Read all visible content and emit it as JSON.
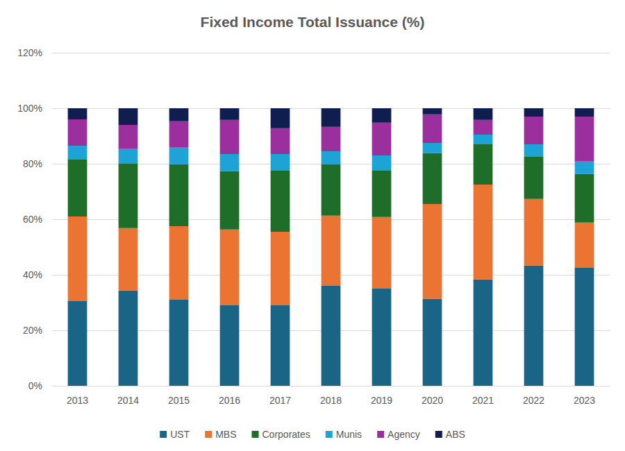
{
  "chart_data": {
    "type": "bar",
    "title": "Fixed Income Total Issuance (%)",
    "categories": [
      "2013",
      "2014",
      "2015",
      "2016",
      "2017",
      "2018",
      "2019",
      "2020",
      "2021",
      "2022",
      "2023"
    ],
    "series": [
      {
        "name": "UST",
        "color": "#1a6485",
        "values": [
          30.5,
          34.3,
          31.0,
          29.0,
          29.0,
          36.0,
          35.0,
          31.3,
          38.3,
          43.3,
          42.5
        ]
      },
      {
        "name": "MBS",
        "color": "#ec7432",
        "values": [
          30.5,
          22.5,
          26.5,
          27.3,
          26.5,
          25.3,
          25.8,
          34.2,
          34.2,
          24.0,
          16.3
        ]
      },
      {
        "name": "Corporates",
        "color": "#1e6e2a",
        "values": [
          20.5,
          23.2,
          22.3,
          21.0,
          22.0,
          18.5,
          16.7,
          18.3,
          14.5,
          15.2,
          17.5
        ]
      },
      {
        "name": "Munis",
        "color": "#1da3d6",
        "values": [
          5.0,
          5.3,
          6.0,
          6.2,
          6.0,
          4.7,
          5.5,
          3.7,
          3.5,
          4.5,
          4.5
        ]
      },
      {
        "name": "Agency",
        "color": "#9b2f9e",
        "values": [
          9.5,
          8.7,
          9.5,
          12.3,
          9.3,
          8.8,
          11.8,
          10.3,
          5.3,
          10.0,
          16.2
        ]
      },
      {
        "name": "ABS",
        "color": "#0f1d4f",
        "values": [
          4.0,
          6.0,
          4.7,
          4.2,
          7.2,
          6.7,
          5.2,
          2.2,
          4.2,
          3.0,
          3.0
        ]
      }
    ],
    "ylim": [
      0,
      120
    ],
    "yticks": [
      {
        "value": 0,
        "label": "0%"
      },
      {
        "value": 20,
        "label": "20%"
      },
      {
        "value": 40,
        "label": "40%"
      },
      {
        "value": 60,
        "label": "60%"
      },
      {
        "value": 80,
        "label": "80%"
      },
      {
        "value": 100,
        "label": "100%"
      },
      {
        "value": 120,
        "label": "120%"
      }
    ],
    "stacked": true,
    "grid": true,
    "legend": "bottom",
    "data_labels": false
  }
}
